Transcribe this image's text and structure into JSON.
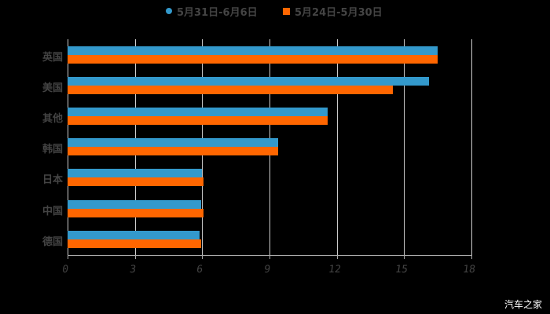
{
  "chart_data": {
    "type": "bar",
    "orientation": "horizontal",
    "title": "",
    "xlabel": "",
    "ylabel": "",
    "xlim": [
      0,
      18
    ],
    "x_ticks": [
      "0",
      "3",
      "6",
      "9",
      "12",
      "15",
      "18"
    ],
    "grid": true,
    "legend_position": "top",
    "categories": [
      "英国",
      "美国",
      "其他",
      "韩国",
      "日本",
      "中国",
      "德国"
    ],
    "series": [
      {
        "name": "5月31日-6月6日",
        "color": "#3399cc",
        "marker": "circle",
        "values": [
          16.5,
          16.1,
          11.6,
          9.4,
          6.0,
          5.95,
          5.9
        ]
      },
      {
        "name": "5月24日-5月30日",
        "color": "#ff6600",
        "marker": "square",
        "values": [
          16.5,
          14.5,
          11.6,
          9.4,
          6.05,
          6.05,
          5.95
        ]
      }
    ]
  },
  "legend": {
    "series1": "5月31日-6月6日",
    "series2": "5月24日-5月30日"
  },
  "watermark": "汽车之家"
}
